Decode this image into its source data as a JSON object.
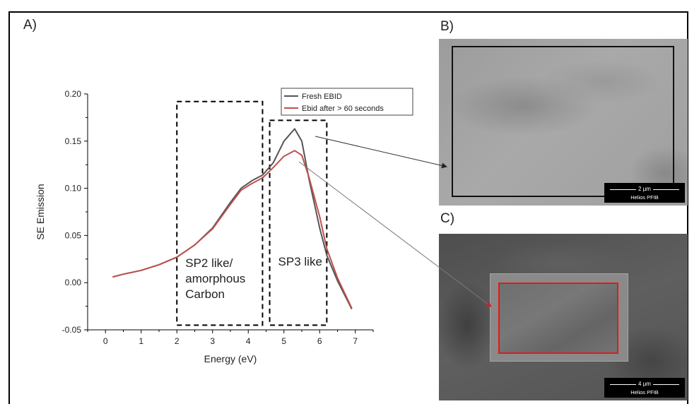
{
  "panels": {
    "a_label": "A)",
    "b_label": "B)",
    "c_label": "C)"
  },
  "chart_data": {
    "type": "line",
    "title": "",
    "xlabel": "Energy (eV)",
    "ylabel": "SE Emission",
    "xlim": [
      -0.5,
      7.5
    ],
    "ylim": [
      -0.05,
      0.2
    ],
    "xticks": [
      0,
      1,
      2,
      3,
      4,
      5,
      6,
      7
    ],
    "yticks": [
      -0.05,
      0.0,
      0.05,
      0.1,
      0.15,
      0.2
    ],
    "xtick_labels": [
      "0",
      "1",
      "2",
      "3",
      "4",
      "5",
      "6",
      "7"
    ],
    "ytick_labels": [
      "-0.05",
      "0.00",
      "0.05",
      "0.10",
      "0.15",
      "0.20"
    ],
    "grid": false,
    "legend_position": "top-right",
    "series": [
      {
        "name": "Fresh EBID",
        "color": "#555555",
        "x": [
          0.2,
          0.5,
          1.0,
          1.5,
          2.0,
          2.5,
          3.0,
          3.5,
          3.8,
          4.1,
          4.4,
          4.7,
          5.0,
          5.3,
          5.5,
          5.7,
          6.0,
          6.2,
          6.5,
          6.9
        ],
        "y": [
          0.006,
          0.009,
          0.013,
          0.019,
          0.027,
          0.04,
          0.058,
          0.085,
          0.1,
          0.108,
          0.114,
          0.127,
          0.15,
          0.163,
          0.15,
          0.11,
          0.058,
          0.029,
          0.002,
          -0.028
        ]
      },
      {
        "name": "Ebid after > 60 seconds",
        "color": "#c0504d",
        "x": [
          0.2,
          0.5,
          1.0,
          1.5,
          2.0,
          2.5,
          3.0,
          3.5,
          3.8,
          4.1,
          4.4,
          4.7,
          5.0,
          5.3,
          5.5,
          5.7,
          6.0,
          6.2,
          6.5,
          6.9
        ],
        "y": [
          0.006,
          0.009,
          0.013,
          0.019,
          0.027,
          0.04,
          0.057,
          0.083,
          0.098,
          0.105,
          0.111,
          0.122,
          0.134,
          0.14,
          0.135,
          0.112,
          0.07,
          0.036,
          0.005,
          -0.027
        ]
      }
    ],
    "annotations": [
      {
        "label": "SP2 like/\namorphous\nCarbon",
        "x_range": [
          2.0,
          4.4
        ],
        "y_range": [
          -0.045,
          0.192
        ]
      },
      {
        "label": "SP3 like",
        "x_range": [
          4.6,
          6.2
        ],
        "y_range": [
          -0.045,
          0.172
        ]
      }
    ]
  },
  "images": {
    "b": {
      "scale_value": "2 µm",
      "scale_name": "Helios PFIB",
      "roi_color": "#111111"
    },
    "c": {
      "scale_value": "4 µm",
      "scale_name": "Helios PFIB",
      "roi_color": "#e01b1b"
    }
  }
}
